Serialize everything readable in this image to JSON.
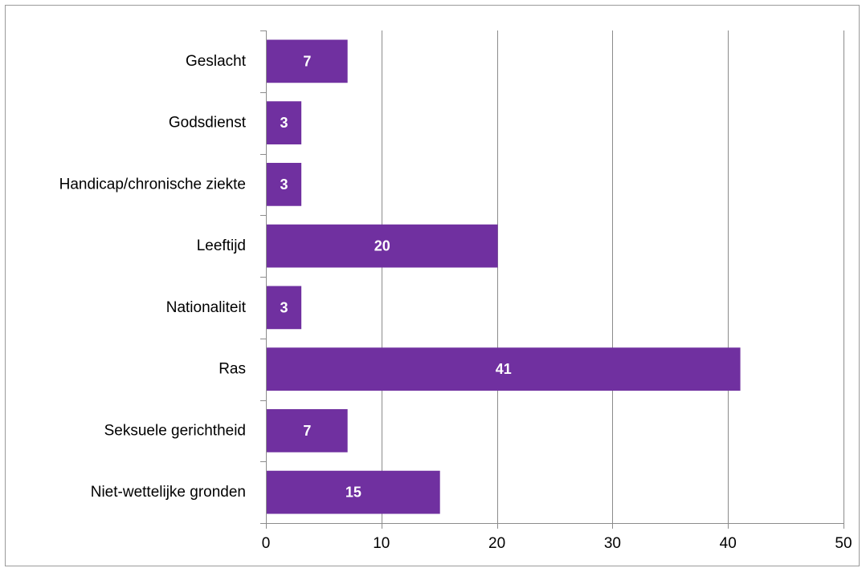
{
  "chart_data": {
    "type": "bar",
    "orientation": "horizontal",
    "categories": [
      "Geslacht",
      "Godsdienst",
      "Handicap/chronische ziekte",
      "Leeftijd",
      "Nationaliteit",
      "Ras",
      "Seksuele gerichtheid",
      "Niet-wettelijke gronden"
    ],
    "values": [
      7,
      3,
      3,
      20,
      3,
      41,
      7,
      15
    ],
    "data_labels": [
      "7",
      "3",
      "3",
      "20",
      "3",
      "41",
      "7",
      "15"
    ],
    "xlim": [
      0,
      50
    ],
    "x_ticks": [
      0,
      10,
      20,
      30,
      40,
      50
    ],
    "x_tick_labels": [
      "0",
      "10",
      "20",
      "30",
      "40",
      "50"
    ],
    "grid": "vertical",
    "legend": "none",
    "bar_color": "#7030a0",
    "title": "",
    "xlabel": "",
    "ylabel": ""
  }
}
